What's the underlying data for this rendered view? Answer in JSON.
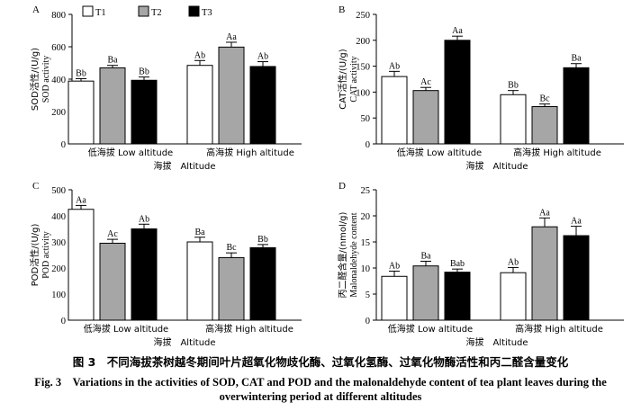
{
  "legend": [
    {
      "name": "T1",
      "color": "#ffffff"
    },
    {
      "name": "T2",
      "color": "#a6a6a6"
    },
    {
      "name": "T3",
      "color": "#000000"
    }
  ],
  "chart_data": [
    {
      "type": "bar",
      "panel": "A",
      "ylabel_cn": "SOD活性/(U/g)",
      "ylabel_en": "SOD activity",
      "xlabel": "海拔　Altitude",
      "categories": [
        "低海拔 Low altitude",
        "高海拔 High altitude"
      ],
      "ylim": [
        0,
        800
      ],
      "yticks": [
        0,
        200,
        400,
        600,
        800
      ],
      "series": [
        {
          "name": "T1",
          "values": [
            388,
            485
          ],
          "errors": [
            15,
            30
          ],
          "letters": [
            "Bb",
            "Ab"
          ]
        },
        {
          "name": "T2",
          "values": [
            470,
            598
          ],
          "errors": [
            15,
            30
          ],
          "letters": [
            "Ba",
            "Aa"
          ]
        },
        {
          "name": "T3",
          "values": [
            393,
            478
          ],
          "errors": [
            20,
            30
          ],
          "letters": [
            "Bb",
            "Ab"
          ]
        }
      ]
    },
    {
      "type": "bar",
      "panel": "B",
      "ylabel_cn": "CAT活性/(U/g)",
      "ylabel_en": "CAT activity",
      "xlabel": "海拔　Altitude",
      "categories": [
        "低海拔 Low altitude",
        "高海拔 High altitude"
      ],
      "ylim": [
        0,
        250
      ],
      "yticks": [
        0,
        50,
        100,
        150,
        200,
        250
      ],
      "series": [
        {
          "name": "T1",
          "values": [
            130,
            95
          ],
          "errors": [
            10,
            8
          ],
          "letters": [
            "Ab",
            "Bb"
          ]
        },
        {
          "name": "T2",
          "values": [
            103,
            72
          ],
          "errors": [
            6,
            5
          ],
          "letters": [
            "Ac",
            "Bc"
          ]
        },
        {
          "name": "T3",
          "values": [
            200,
            147
          ],
          "errors": [
            8,
            8
          ],
          "letters": [
            "Aa",
            "Ba"
          ]
        }
      ]
    },
    {
      "type": "bar",
      "panel": "C",
      "ylabel_cn": "POD活性/(U/g)",
      "ylabel_en": "POD activity",
      "xlabel": "海拔　Altitude",
      "categories": [
        "低海拔 Low altitude",
        "高海拔 High altitude"
      ],
      "ylim": [
        0,
        500
      ],
      "yticks": [
        0,
        100,
        200,
        300,
        400,
        500
      ],
      "series": [
        {
          "name": "T1",
          "values": [
            425,
            300
          ],
          "errors": [
            15,
            18
          ],
          "letters": [
            "Aa",
            "Ba"
          ]
        },
        {
          "name": "T2",
          "values": [
            295,
            240
          ],
          "errors": [
            15,
            18
          ],
          "letters": [
            "Ac",
            "Bc"
          ]
        },
        {
          "name": "T3",
          "values": [
            350,
            278
          ],
          "errors": [
            18,
            12
          ],
          "letters": [
            "Ab",
            "Bb"
          ]
        }
      ]
    },
    {
      "type": "bar",
      "panel": "D",
      "ylabel_cn": "丙二醛含量/(nmol/g)",
      "ylabel_en": "Malonaldehyde content",
      "xlabel": "海拔　Altitude",
      "categories": [
        "低海拔 Low altitude",
        "高海拔 High altitude"
      ],
      "ylim": [
        0,
        25
      ],
      "yticks": [
        0,
        5,
        10,
        15,
        20,
        25
      ],
      "series": [
        {
          "name": "T1",
          "values": [
            8.4,
            9.1
          ],
          "errors": [
            1.0,
            1.0
          ],
          "letters": [
            "Ab",
            "Ab"
          ]
        },
        {
          "name": "T2",
          "values": [
            10.4,
            17.9
          ],
          "errors": [
            0.9,
            1.7
          ],
          "letters": [
            "Ba",
            "Aa"
          ]
        },
        {
          "name": "T3",
          "values": [
            9.2,
            16.2
          ],
          "errors": [
            0.6,
            1.8
          ],
          "letters": [
            "Bab",
            "Aa"
          ]
        }
      ]
    }
  ],
  "caption": {
    "cn": "图 3　不同海拔茶树越冬期间叶片超氧化物歧化酶、过氧化氢酶、过氧化物酶活性和丙二醛含量变化",
    "en_line1": "Fig. 3　Variations in the activities of SOD, CAT and POD and the malonaldehyde content of tea plant leaves during the",
    "en_line2": "overwintering period at different altitudes"
  }
}
